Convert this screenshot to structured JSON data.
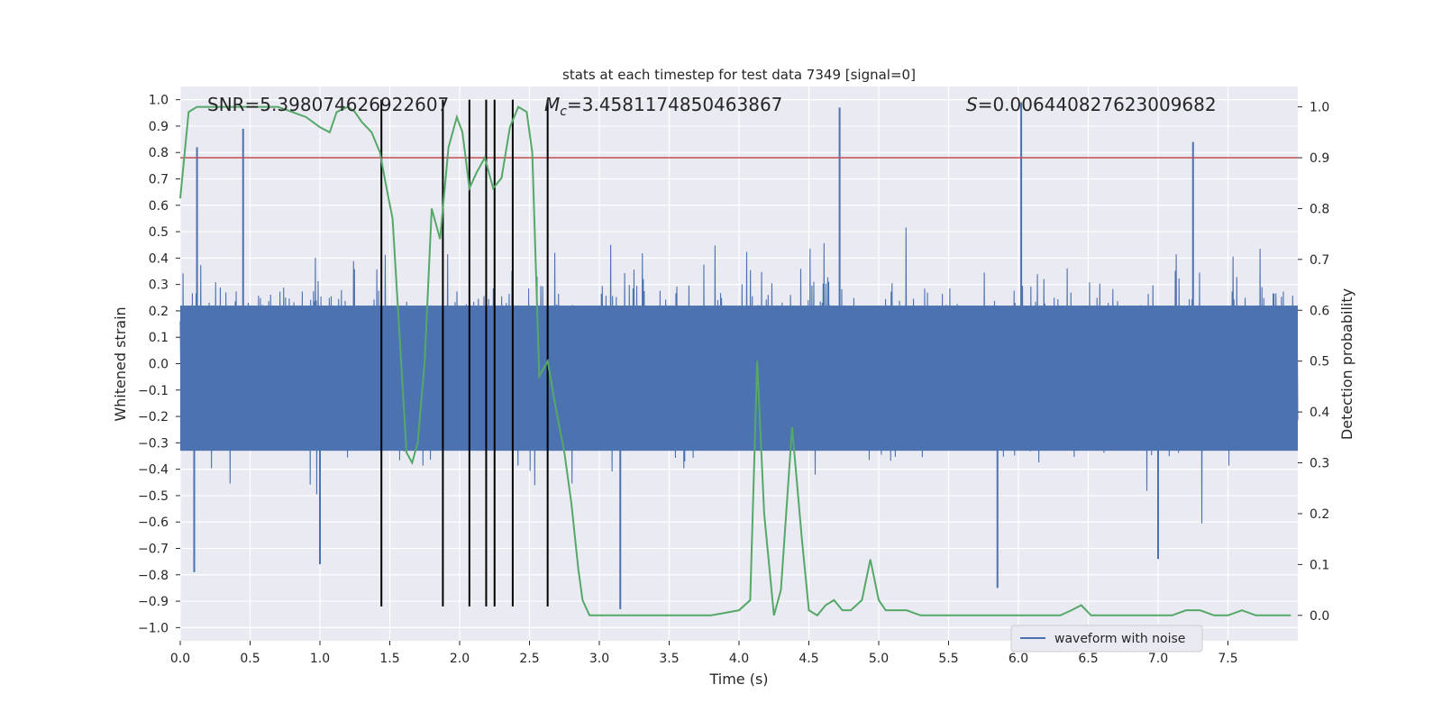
{
  "chart_data": {
    "type": "line",
    "title": "stats at each timestep for test data 7349 [signal=0]",
    "xlabel": "Time (s)",
    "ylabel_left": "Whitened strain",
    "ylabel_right": "Detection probability",
    "xlim": [
      0.0,
      8.0
    ],
    "ylim_left": [
      -1.05,
      1.05
    ],
    "ylim_right": [
      -0.05,
      1.04
    ],
    "xticks": [
      "0.0",
      "0.5",
      "1.0",
      "1.5",
      "2.0",
      "2.5",
      "3.0",
      "3.5",
      "4.0",
      "4.5",
      "5.0",
      "5.5",
      "6.0",
      "6.5",
      "7.0",
      "7.5"
    ],
    "xtick_values": [
      0,
      0.5,
      1,
      1.5,
      2,
      2.5,
      3,
      3.5,
      4,
      4.5,
      5,
      5.5,
      6,
      6.5,
      7,
      7.5
    ],
    "yticks_left": [
      "1.0",
      "0.9",
      "0.8",
      "0.7",
      "0.6",
      "0.5",
      "0.4",
      "0.3",
      "0.2",
      "0.1",
      "0.0",
      "−0.1",
      "−0.2",
      "−0.3",
      "−0.4",
      "−0.5",
      "−0.6",
      "−0.7",
      "−0.8",
      "−0.9",
      "−1.0"
    ],
    "ytick_values_left": [
      1.0,
      0.9,
      0.8,
      0.7,
      0.6,
      0.5,
      0.4,
      0.3,
      0.2,
      0.1,
      0.0,
      -0.1,
      -0.2,
      -0.3,
      -0.4,
      -0.5,
      -0.6,
      -0.7,
      -0.8,
      -0.9,
      -1.0
    ],
    "yticks_right": [
      "1.0",
      "0.9",
      "0.8",
      "0.7",
      "0.6",
      "0.5",
      "0.4",
      "0.3",
      "0.2",
      "0.1",
      "0.0"
    ],
    "ytick_values_right": [
      1.0,
      0.9,
      0.8,
      0.7,
      0.6,
      0.5,
      0.4,
      0.3,
      0.2,
      0.1,
      0.0
    ],
    "annotations": {
      "snr": "SNR=5.398074626922607",
      "mc_symbol": "M",
      "mc_sub": "c",
      "mc_value": "=3.4581174850463867",
      "s_symbol": "S",
      "s_value": "=0.006440827623009682"
    },
    "threshold": 0.9,
    "vertical_lines": [
      1.44,
      1.88,
      2.07,
      2.19,
      2.25,
      2.38,
      2.63
    ],
    "vline_ymin": -0.92,
    "vline_ymax": 1.0,
    "legend": {
      "label": "waveform with noise",
      "placement": "bottom-right"
    },
    "waveform": {
      "name": "waveform with noise",
      "x_range": [
        0.0,
        8.0
      ],
      "typical_amplitude": 0.35,
      "max_amplitude": 0.99,
      "peaks": [
        {
          "x": 0.45,
          "y": 0.89
        },
        {
          "x": 0.12,
          "y": 0.82
        },
        {
          "x": 4.72,
          "y": 0.97
        },
        {
          "x": 6.02,
          "y": 0.99
        },
        {
          "x": 7.25,
          "y": 0.84
        },
        {
          "x": 3.15,
          "y": -0.93
        },
        {
          "x": 5.85,
          "y": -0.85
        },
        {
          "x": 0.1,
          "y": -0.79
        },
        {
          "x": 7.0,
          "y": -0.74
        },
        {
          "x": 1.0,
          "y": -0.76
        }
      ]
    },
    "series": [
      {
        "name": "detection probability",
        "axis": "right",
        "x": [
          0.0,
          0.06,
          0.12,
          0.2,
          0.3,
          0.4,
          0.5,
          0.6,
          0.7,
          0.8,
          0.9,
          1.0,
          1.07,
          1.12,
          1.2,
          1.25,
          1.3,
          1.37,
          1.43,
          1.47,
          1.52,
          1.57,
          1.62,
          1.66,
          1.7,
          1.75,
          1.8,
          1.86,
          1.92,
          1.98,
          2.02,
          2.07,
          2.12,
          2.18,
          2.24,
          2.3,
          2.36,
          2.42,
          2.48,
          2.52,
          2.57,
          2.63,
          2.68,
          2.75,
          2.8,
          2.85,
          2.88,
          2.93,
          3.0,
          3.2,
          3.5,
          3.8,
          3.9,
          4.0,
          4.08,
          4.13,
          4.18,
          4.25,
          4.3,
          4.38,
          4.45,
          4.5,
          4.56,
          4.62,
          4.68,
          4.74,
          4.8,
          4.88,
          4.94,
          5.0,
          5.05,
          5.12,
          5.2,
          5.3,
          5.5,
          5.8,
          6.0,
          6.3,
          6.38,
          6.45,
          6.52,
          6.6,
          6.8,
          7.0,
          7.1,
          7.2,
          7.3,
          7.4,
          7.5,
          7.6,
          7.7,
          7.85,
          7.95
        ],
        "y": [
          0.82,
          0.99,
          1.0,
          1.0,
          1.0,
          1.0,
          1.0,
          1.0,
          1.0,
          0.99,
          0.98,
          0.96,
          0.95,
          0.99,
          1.0,
          0.99,
          0.97,
          0.95,
          0.91,
          0.85,
          0.78,
          0.55,
          0.32,
          0.3,
          0.34,
          0.5,
          0.8,
          0.74,
          0.92,
          0.98,
          0.95,
          0.84,
          0.87,
          0.9,
          0.84,
          0.86,
          0.96,
          1.0,
          0.99,
          0.91,
          0.47,
          0.5,
          0.42,
          0.32,
          0.22,
          0.09,
          0.03,
          0.0,
          0.0,
          0.0,
          0.0,
          0.0,
          0.005,
          0.01,
          0.03,
          0.5,
          0.2,
          0.0,
          0.05,
          0.37,
          0.15,
          0.01,
          0.0,
          0.02,
          0.03,
          0.01,
          0.01,
          0.03,
          0.11,
          0.03,
          0.01,
          0.01,
          0.01,
          0.0,
          0.0,
          0.0,
          0.0,
          0.0,
          0.01,
          0.02,
          0.0,
          0.0,
          0.0,
          0.0,
          0.0,
          0.01,
          0.01,
          0.0,
          0.0,
          0.01,
          0.0,
          0.0,
          0.0
        ],
        "color": "#55a868"
      }
    ],
    "colors": {
      "background": "#eaeaf2",
      "grid": "#ffffff",
      "waveform": "#4c72b0",
      "probability": "#55a868",
      "threshold": "#c44e52",
      "vlines": "#000000"
    }
  }
}
